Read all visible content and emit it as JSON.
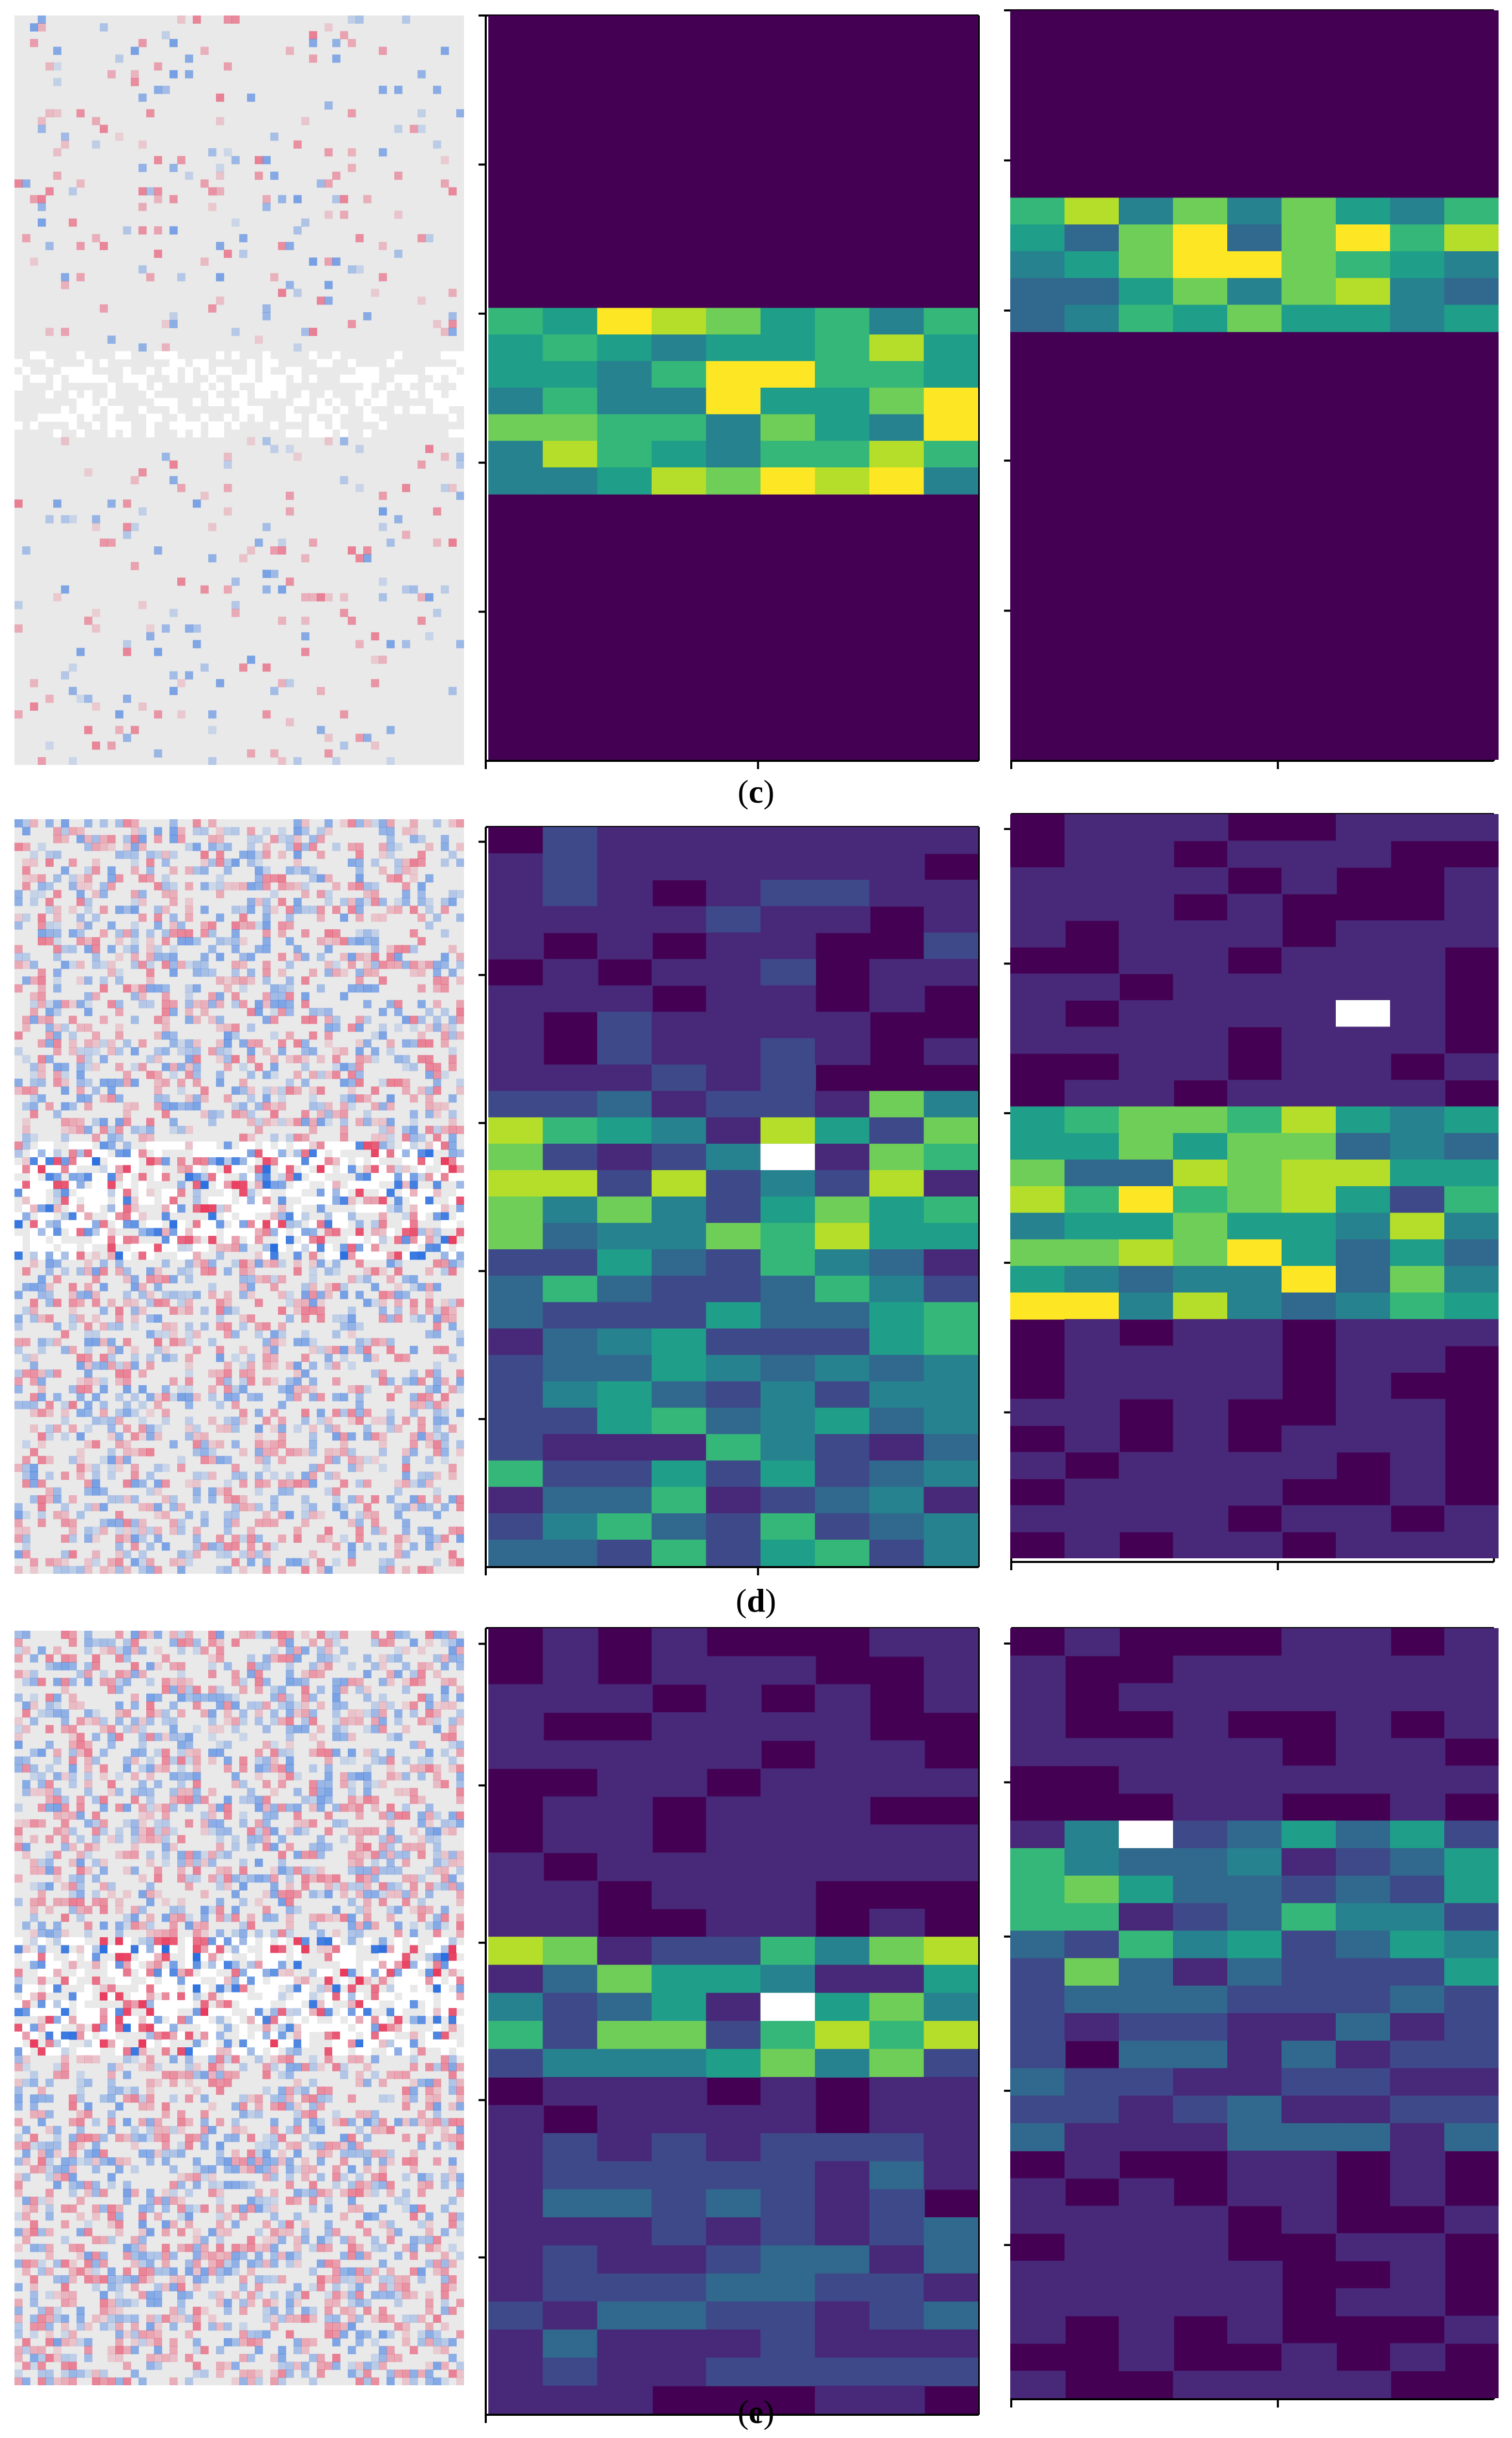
{
  "panels": [
    {
      "label": "c",
      "caption_prefix": "(",
      "caption_suffix": ")"
    },
    {
      "label": "d",
      "caption_prefix": "(",
      "caption_suffix": ")"
    },
    {
      "label": "e",
      "caption_prefix": "(",
      "caption_suffix": ")"
    }
  ],
  "colormap": {
    "name": "viridis",
    "stops": [
      "#440154",
      "#482878",
      "#3e4989",
      "#31688e",
      "#26828e",
      "#1f9e89",
      "#35b779",
      "#6ece58",
      "#b5de2b",
      "#fde725"
    ],
    "saturated": "#ffffff"
  },
  "attribution_colors": {
    "background": "#e9e9e9",
    "positive": "#e8385a",
    "negative": "#2a6fe0",
    "neutral": "#ffffff"
  }
}
